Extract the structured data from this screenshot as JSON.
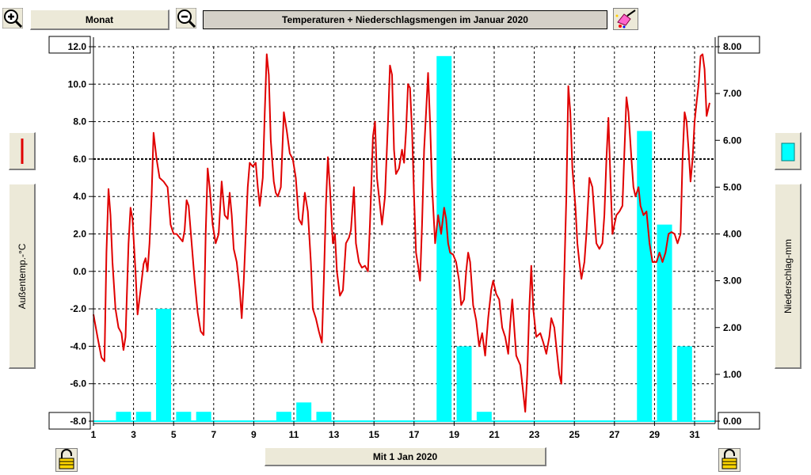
{
  "toolbar": {
    "zoom_in_icon": "magnifier-plus-icon",
    "zoom_out_icon": "magnifier-minus-icon",
    "period_label": "Monat",
    "title": "Temperaturen + Niederschlagsmengen im Januar 2020",
    "color_picker_icon": "paint-icon"
  },
  "left_panel": {
    "series_icon": "red-line-icon",
    "axis_label": "Außentemp.-°C",
    "lock_icon": "padlock-icon"
  },
  "right_panel": {
    "series_icon": "cyan-bar-icon",
    "axis_label": "Niederschlag-mm",
    "lock_icon": "padlock-icon"
  },
  "footer": {
    "date_label": "Mit 1 Jan 2020"
  },
  "colors": {
    "temperature_line": "#e00000",
    "precipitation_bar": "#00ffff",
    "title_bar_bg": "#d4d0c8"
  },
  "chart_data": {
    "type": "line+bar",
    "title": "Temperaturen + Niederschlagsmengen im Januar 2020",
    "x_ticks": [
      "1",
      "3",
      "5",
      "7",
      "9",
      "11",
      "13",
      "15",
      "17",
      "19",
      "21",
      "23",
      "25",
      "27",
      "29",
      "31"
    ],
    "xlim": [
      1,
      32
    ],
    "y_left": {
      "label": "Außentemp.-°C",
      "ylim": [
        -8,
        12
      ],
      "ticks": [
        "12.0",
        "10.0",
        "8.0",
        "6.0",
        "4.0",
        "2.0",
        "0.0",
        "-2.0",
        "-4.0",
        "-6.0",
        "-8.0"
      ],
      "ref_line": 6
    },
    "y_right": {
      "label": "Niederschlag-mm",
      "ylim": [
        0,
        8
      ],
      "ticks": [
        "8.00",
        "7.00",
        "6.00",
        "5.00",
        "4.00",
        "3.00",
        "2.00",
        "1.00",
        "0.00"
      ]
    },
    "grid": true,
    "series": [
      {
        "name": "Außentemp.-°C",
        "type": "line",
        "axis": "left",
        "points": [
          [
            1.0,
            -2.3
          ],
          [
            1.2,
            -3.5
          ],
          [
            1.4,
            -4.6
          ],
          [
            1.55,
            -4.8
          ],
          [
            1.65,
            1.0
          ],
          [
            1.75,
            4.4
          ],
          [
            1.85,
            3.0
          ],
          [
            1.95,
            0.5
          ],
          [
            2.1,
            -2.0
          ],
          [
            2.25,
            -3.0
          ],
          [
            2.4,
            -3.3
          ],
          [
            2.5,
            -4.2
          ],
          [
            2.6,
            -3.5
          ],
          [
            2.75,
            1.5
          ],
          [
            2.85,
            3.4
          ],
          [
            2.95,
            2.8
          ],
          [
            3.1,
            0.0
          ],
          [
            3.2,
            -2.3
          ],
          [
            3.35,
            -1.0
          ],
          [
            3.5,
            0.4
          ],
          [
            3.6,
            0.7
          ],
          [
            3.7,
            0.0
          ],
          [
            3.8,
            1.5
          ],
          [
            3.9,
            4.0
          ],
          [
            4.0,
            7.4
          ],
          [
            4.15,
            6.0
          ],
          [
            4.3,
            5.0
          ],
          [
            4.5,
            4.8
          ],
          [
            4.7,
            4.5
          ],
          [
            4.85,
            2.5
          ],
          [
            5.0,
            2.0
          ],
          [
            5.15,
            2.0
          ],
          [
            5.3,
            1.8
          ],
          [
            5.45,
            1.6
          ],
          [
            5.55,
            2.2
          ],
          [
            5.65,
            3.8
          ],
          [
            5.75,
            3.5
          ],
          [
            5.9,
            1.5
          ],
          [
            6.05,
            -0.5
          ],
          [
            6.2,
            -2.2
          ],
          [
            6.35,
            -3.2
          ],
          [
            6.5,
            -3.4
          ],
          [
            6.6,
            2.0
          ],
          [
            6.7,
            5.5
          ],
          [
            6.8,
            4.5
          ],
          [
            6.95,
            2.5
          ],
          [
            7.1,
            1.5
          ],
          [
            7.25,
            2.0
          ],
          [
            7.4,
            4.8
          ],
          [
            7.55,
            3.0
          ],
          [
            7.7,
            2.8
          ],
          [
            7.8,
            4.2
          ],
          [
            7.9,
            3.0
          ],
          [
            8.0,
            1.2
          ],
          [
            8.15,
            0.5
          ],
          [
            8.3,
            -1.0
          ],
          [
            8.4,
            -2.5
          ],
          [
            8.5,
            -0.5
          ],
          [
            8.6,
            2.0
          ],
          [
            8.7,
            4.5
          ],
          [
            8.8,
            5.8
          ],
          [
            8.95,
            5.6
          ],
          [
            9.1,
            5.8
          ],
          [
            9.2,
            4.5
          ],
          [
            9.3,
            3.5
          ],
          [
            9.45,
            5.0
          ],
          [
            9.55,
            8.5
          ],
          [
            9.65,
            11.6
          ],
          [
            9.75,
            10.5
          ],
          [
            9.85,
            7.0
          ],
          [
            10.0,
            4.8
          ],
          [
            10.1,
            4.2
          ],
          [
            10.2,
            4.0
          ],
          [
            10.35,
            4.5
          ],
          [
            10.5,
            8.5
          ],
          [
            10.65,
            7.5
          ],
          [
            10.8,
            6.3
          ],
          [
            10.95,
            6.0
          ],
          [
            11.1,
            5.0
          ],
          [
            11.25,
            2.8
          ],
          [
            11.4,
            2.5
          ],
          [
            11.55,
            4.2
          ],
          [
            11.7,
            3.2
          ],
          [
            11.85,
            0.5
          ],
          [
            11.95,
            -2.0
          ],
          [
            12.1,
            -2.5
          ],
          [
            12.25,
            -3.2
          ],
          [
            12.4,
            -3.8
          ],
          [
            12.5,
            -0.5
          ],
          [
            12.6,
            3.5
          ],
          [
            12.7,
            6.1
          ],
          [
            12.8,
            4.5
          ],
          [
            12.95,
            1.5
          ],
          [
            13.05,
            2.0
          ],
          [
            13.15,
            0.0
          ],
          [
            13.3,
            -1.3
          ],
          [
            13.45,
            -1.0
          ],
          [
            13.6,
            1.5
          ],
          [
            13.75,
            1.8
          ],
          [
            13.85,
            2.2
          ],
          [
            14.0,
            4.5
          ],
          [
            14.1,
            1.5
          ],
          [
            14.25,
            0.5
          ],
          [
            14.4,
            0.2
          ],
          [
            14.55,
            0.3
          ],
          [
            14.7,
            0.0
          ],
          [
            14.8,
            2.5
          ],
          [
            14.95,
            7.2
          ],
          [
            15.05,
            8.0
          ],
          [
            15.15,
            5.0
          ],
          [
            15.3,
            3.5
          ],
          [
            15.4,
            2.5
          ],
          [
            15.55,
            4.0
          ],
          [
            15.7,
            8.0
          ],
          [
            15.8,
            11.0
          ],
          [
            15.9,
            10.5
          ],
          [
            16.0,
            6.5
          ],
          [
            16.1,
            5.2
          ],
          [
            16.25,
            5.5
          ],
          [
            16.4,
            6.5
          ],
          [
            16.5,
            5.8
          ],
          [
            16.6,
            7.5
          ],
          [
            16.7,
            10.0
          ],
          [
            16.8,
            9.8
          ],
          [
            16.9,
            7.5
          ],
          [
            17.0,
            4.0
          ],
          [
            17.1,
            1.0
          ],
          [
            17.2,
            0.3
          ],
          [
            17.3,
            -0.5
          ],
          [
            17.4,
            2.5
          ],
          [
            17.5,
            6.5
          ],
          [
            17.6,
            8.5
          ],
          [
            17.7,
            10.6
          ],
          [
            17.8,
            8.0
          ],
          [
            17.9,
            4.5
          ],
          [
            18.05,
            1.5
          ],
          [
            18.2,
            3.0
          ],
          [
            18.35,
            2.0
          ],
          [
            18.5,
            3.4
          ],
          [
            18.6,
            2.8
          ],
          [
            18.7,
            1.5
          ],
          [
            18.8,
            1.0
          ],
          [
            18.95,
            0.9
          ],
          [
            19.1,
            0.5
          ],
          [
            19.25,
            -0.5
          ],
          [
            19.35,
            -1.8
          ],
          [
            19.5,
            -1.5
          ],
          [
            19.6,
            0.0
          ],
          [
            19.7,
            1.0
          ],
          [
            19.8,
            0.5
          ],
          [
            19.95,
            -1.8
          ],
          [
            20.1,
            -2.6
          ],
          [
            20.25,
            -4.0
          ],
          [
            20.4,
            -3.3
          ],
          [
            20.55,
            -4.5
          ],
          [
            20.7,
            -2.5
          ],
          [
            20.85,
            -1.0
          ],
          [
            20.95,
            -0.5
          ],
          [
            21.1,
            -1.2
          ],
          [
            21.25,
            -1.5
          ],
          [
            21.4,
            -3.0
          ],
          [
            21.55,
            -3.5
          ],
          [
            21.7,
            -4.4
          ],
          [
            21.8,
            -2.8
          ],
          [
            21.9,
            -1.5
          ],
          [
            22.0,
            -3.0
          ],
          [
            22.1,
            -4.5
          ],
          [
            22.3,
            -5.0
          ],
          [
            22.45,
            -6.5
          ],
          [
            22.55,
            -7.5
          ],
          [
            22.65,
            -5.5
          ],
          [
            22.75,
            -2.0
          ],
          [
            22.85,
            0.3
          ],
          [
            22.95,
            -2.0
          ],
          [
            23.1,
            -3.5
          ],
          [
            23.3,
            -3.3
          ],
          [
            23.45,
            -3.8
          ],
          [
            23.6,
            -4.4
          ],
          [
            23.75,
            -3.5
          ],
          [
            23.85,
            -2.5
          ],
          [
            24.0,
            -3.0
          ],
          [
            24.1,
            -4.0
          ],
          [
            24.25,
            -5.5
          ],
          [
            24.35,
            -6.0
          ],
          [
            24.45,
            -2.0
          ],
          [
            24.6,
            4.0
          ],
          [
            24.7,
            9.9
          ],
          [
            24.8,
            8.5
          ],
          [
            24.9,
            5.5
          ],
          [
            25.05,
            3.5
          ],
          [
            25.15,
            1.5
          ],
          [
            25.25,
            0.5
          ],
          [
            25.35,
            -0.4
          ],
          [
            25.5,
            0.5
          ],
          [
            25.6,
            2.0
          ],
          [
            25.75,
            5.0
          ],
          [
            25.9,
            4.5
          ],
          [
            26.0,
            3.0
          ],
          [
            26.1,
            1.5
          ],
          [
            26.25,
            1.2
          ],
          [
            26.4,
            1.5
          ],
          [
            26.5,
            3.0
          ],
          [
            26.6,
            6.0
          ],
          [
            26.7,
            8.2
          ],
          [
            26.8,
            5.0
          ],
          [
            26.9,
            2.0
          ],
          [
            27.0,
            2.5
          ],
          [
            27.1,
            3.0
          ],
          [
            27.25,
            3.2
          ],
          [
            27.4,
            3.5
          ],
          [
            27.5,
            6.5
          ],
          [
            27.6,
            9.3
          ],
          [
            27.7,
            8.5
          ],
          [
            27.85,
            6.0
          ],
          [
            27.95,
            4.5
          ],
          [
            28.05,
            4.0
          ],
          [
            28.2,
            4.5
          ],
          [
            28.3,
            3.5
          ],
          [
            28.45,
            3.0
          ],
          [
            28.6,
            3.2
          ],
          [
            28.75,
            1.5
          ],
          [
            28.9,
            0.5
          ],
          [
            29.1,
            0.5
          ],
          [
            29.25,
            1.0
          ],
          [
            29.4,
            0.5
          ],
          [
            29.55,
            1.0
          ],
          [
            29.7,
            2.0
          ],
          [
            29.85,
            2.1
          ],
          [
            30.0,
            2.0
          ],
          [
            30.15,
            1.5
          ],
          [
            30.3,
            2.0
          ],
          [
            30.4,
            6.0
          ],
          [
            30.5,
            8.5
          ],
          [
            30.6,
            8.0
          ],
          [
            30.7,
            6.5
          ],
          [
            30.8,
            4.8
          ],
          [
            30.9,
            6.0
          ],
          [
            31.0,
            8.0
          ],
          [
            31.1,
            9.0
          ],
          [
            31.2,
            10.0
          ],
          [
            31.3,
            11.5
          ],
          [
            31.4,
            11.6
          ],
          [
            31.5,
            10.8
          ],
          [
            31.6,
            8.3
          ],
          [
            31.75,
            9.0
          ]
        ]
      },
      {
        "name": "Niederschlag-mm",
        "type": "bar",
        "axis": "right",
        "bars": [
          {
            "day": 3,
            "value": 0.2
          },
          {
            "day": 4,
            "value": 0.2
          },
          {
            "day": 5,
            "value": 2.4
          },
          {
            "day": 6,
            "value": 0.2
          },
          {
            "day": 7,
            "value": 0.2
          },
          {
            "day": 11,
            "value": 0.2
          },
          {
            "day": 12,
            "value": 0.4
          },
          {
            "day": 13,
            "value": 0.2
          },
          {
            "day": 19,
            "value": 7.8
          },
          {
            "day": 20,
            "value": 1.6
          },
          {
            "day": 21,
            "value": 0.2
          },
          {
            "day": 29,
            "value": 6.2
          },
          {
            "day": 30,
            "value": 4.2
          },
          {
            "day": 31,
            "value": 1.6
          }
        ]
      }
    ]
  }
}
